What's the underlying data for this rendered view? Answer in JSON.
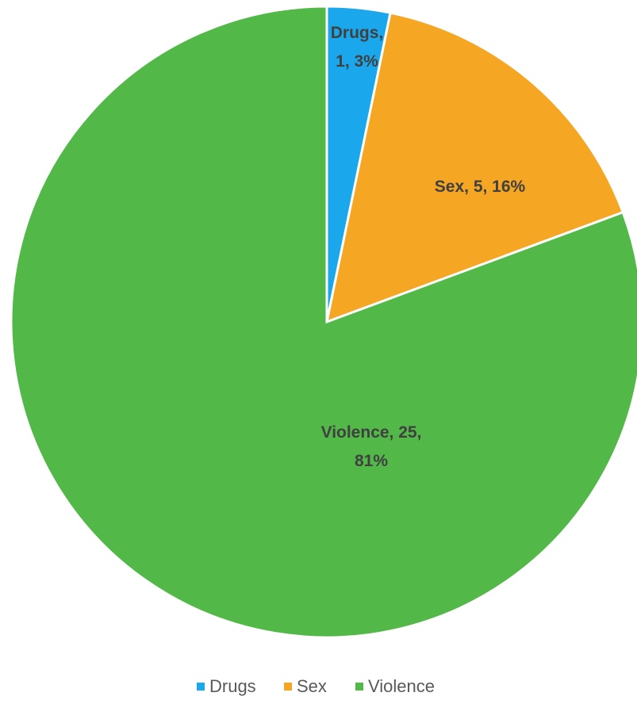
{
  "chart_data": {
    "type": "pie",
    "title": "",
    "slices": [
      {
        "label": "Drugs",
        "value": 1,
        "percent": "3%",
        "color": "#1aa7ec",
        "data_label_lines": [
          "Drugs,",
          "1, 3%"
        ]
      },
      {
        "label": "Sex",
        "value": 5,
        "percent": "16%",
        "color": "#f5a623",
        "data_label_lines": [
          "Sex, 5, 16%"
        ]
      },
      {
        "label": "Violence",
        "value": 25,
        "percent": "81%",
        "color": "#52b848",
        "data_label_lines": [
          "Violence, 25,",
          "81%"
        ]
      }
    ],
    "legend": {
      "position": "bottom",
      "entries": [
        "Drugs",
        "Sex",
        "Violence"
      ]
    }
  }
}
